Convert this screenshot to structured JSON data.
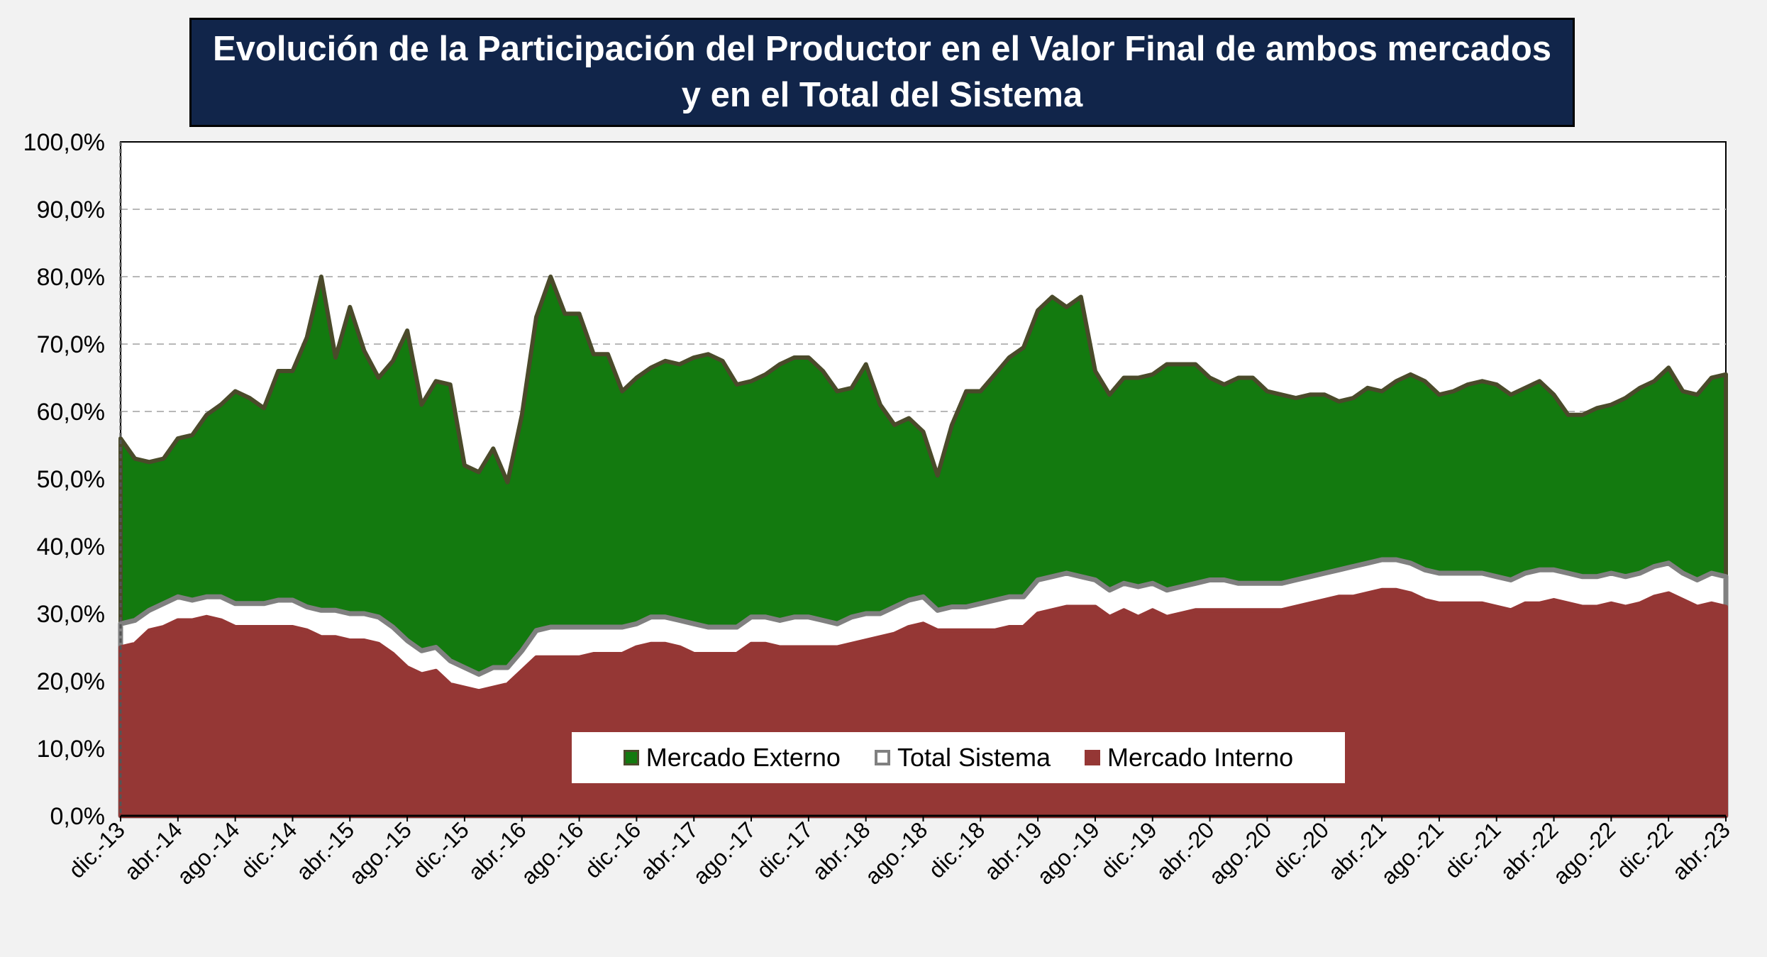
{
  "chart_data": {
    "type": "area",
    "title_line1": "Evolución de la Participación del Productor en el Valor Final de ambos mercados",
    "title_line2": "y en el Total del Sistema",
    "xlabel": "",
    "ylabel": "",
    "ylim": [
      0,
      100
    ],
    "y_ticks": [
      "0,0%",
      "10,0%",
      "20,0%",
      "30,0%",
      "40,0%",
      "50,0%",
      "60,0%",
      "70,0%",
      "80,0%",
      "90,0%",
      "100,0%"
    ],
    "x_tick_labels": [
      "dic.-13",
      "abr.-14",
      "ago.-14",
      "dic.-14",
      "abr.-15",
      "ago.-15",
      "dic.-15",
      "abr.-16",
      "ago.-16",
      "dic.-16",
      "abr.-17",
      "ago.-17",
      "dic.-17",
      "abr.-18",
      "ago.-18",
      "dic.-18",
      "abr.-19",
      "ago.-19",
      "dic.-19",
      "abr.-20",
      "ago.-20",
      "dic.-20",
      "abr.-21",
      "ago.-21",
      "dic.-21",
      "abr.-22",
      "ago.-22",
      "dic.-22",
      "abr.-23"
    ],
    "grid": "horizontal dashed",
    "legend_position": "bottom-center inside plot",
    "series": [
      {
        "name": "Mercado Externo",
        "color": "#137a0f",
        "values": [
          56.0,
          53.0,
          52.5,
          53.0,
          56.0,
          56.5,
          59.5,
          61.0,
          63.0,
          62.0,
          60.5,
          66.0,
          66.0,
          71.0,
          80.0,
          68.0,
          75.5,
          69.0,
          65.0,
          67.5,
          72.0,
          61.0,
          64.5,
          64.0,
          52.0,
          51.0,
          54.5,
          49.5,
          59.5,
          74.0,
          80.0,
          74.5,
          74.5,
          68.5,
          68.5,
          63.0,
          65.0,
          66.5,
          67.5,
          67.0,
          68.0,
          68.5,
          67.5,
          64.0,
          64.5,
          65.5,
          67.0,
          68.0,
          68.0,
          66.0,
          63.0,
          63.5,
          67.0,
          61.0,
          58.0,
          59.0,
          57.0,
          50.5,
          58.0,
          63.0,
          63.0,
          65.5,
          68.0,
          69.5,
          75.0,
          77.0,
          75.5,
          77.0,
          66.0,
          62.5,
          65.0,
          65.0,
          65.5,
          67.0,
          67.0,
          67.0,
          65.0,
          64.0,
          65.0,
          65.0,
          63.0,
          62.5,
          62.0,
          62.5,
          62.5,
          61.5,
          62.0,
          63.5,
          63.0,
          64.5,
          65.5,
          64.5,
          62.5,
          63.0,
          64.0,
          64.5,
          64.0,
          62.5,
          63.5,
          64.5,
          62.5,
          59.5,
          59.5,
          60.5,
          61.0,
          62.0,
          63.5,
          64.5,
          66.5,
          63.0,
          62.5,
          65.0,
          65.5
        ]
      },
      {
        "name": "Total Sistema",
        "color": "#ffffff",
        "values": [
          28.5,
          29.0,
          30.5,
          31.5,
          32.5,
          32.0,
          32.5,
          32.5,
          31.5,
          31.5,
          31.5,
          32.0,
          32.0,
          31.0,
          30.5,
          30.5,
          30.0,
          30.0,
          29.5,
          28.0,
          26.0,
          24.5,
          25.0,
          23.0,
          22.0,
          21.0,
          22.0,
          22.0,
          24.5,
          27.5,
          28.0,
          28.0,
          28.0,
          28.0,
          28.0,
          28.0,
          28.5,
          29.5,
          29.5,
          29.0,
          28.5,
          28.0,
          28.0,
          28.0,
          29.5,
          29.5,
          29.0,
          29.5,
          29.5,
          29.0,
          28.5,
          29.5,
          30.0,
          30.0,
          31.0,
          32.0,
          32.5,
          30.5,
          31.0,
          31.0,
          31.5,
          32.0,
          32.5,
          32.5,
          35.0,
          35.5,
          36.0,
          35.5,
          35.0,
          33.5,
          34.5,
          34.0,
          34.5,
          33.5,
          34.0,
          34.5,
          35.0,
          35.0,
          34.5,
          34.5,
          34.5,
          34.5,
          35.0,
          35.5,
          36.0,
          36.5,
          37.0,
          37.5,
          38.0,
          38.0,
          37.5,
          36.5,
          36.0,
          36.0,
          36.0,
          36.0,
          35.5,
          35.0,
          36.0,
          36.5,
          36.5,
          36.0,
          35.5,
          35.5,
          36.0,
          35.5,
          36.0,
          37.0,
          37.5,
          36.0,
          35.0,
          36.0,
          35.5
        ]
      },
      {
        "name": "Mercado Interno",
        "color": "#953735",
        "values": [
          25.0,
          25.5,
          27.5,
          28.0,
          29.0,
          29.0,
          29.5,
          29.0,
          28.0,
          28.0,
          28.0,
          28.0,
          28.0,
          27.5,
          26.5,
          26.5,
          26.0,
          26.0,
          25.5,
          24.0,
          22.0,
          21.0,
          21.5,
          19.5,
          19.0,
          18.5,
          19.0,
          19.5,
          21.5,
          23.5,
          23.5,
          23.5,
          23.5,
          24.0,
          24.0,
          24.0,
          25.0,
          25.5,
          25.5,
          25.0,
          24.0,
          24.0,
          24.0,
          24.0,
          25.5,
          25.5,
          25.0,
          25.0,
          25.0,
          25.0,
          25.0,
          25.5,
          26.0,
          26.5,
          27.0,
          28.0,
          28.5,
          27.5,
          27.5,
          27.5,
          27.5,
          27.5,
          28.0,
          28.0,
          30.0,
          30.5,
          31.0,
          31.0,
          31.0,
          29.5,
          30.5,
          29.5,
          30.5,
          29.5,
          30.0,
          30.5,
          30.5,
          30.5,
          30.5,
          30.5,
          30.5,
          30.5,
          31.0,
          31.5,
          32.0,
          32.5,
          32.5,
          33.0,
          33.5,
          33.5,
          33.0,
          32.0,
          31.5,
          31.5,
          31.5,
          31.5,
          31.0,
          30.5,
          31.5,
          31.5,
          32.0,
          31.5,
          31.0,
          31.0,
          31.5,
          31.0,
          31.5,
          32.5,
          33.0,
          32.0,
          31.0,
          31.5,
          31.0
        ]
      }
    ]
  }
}
